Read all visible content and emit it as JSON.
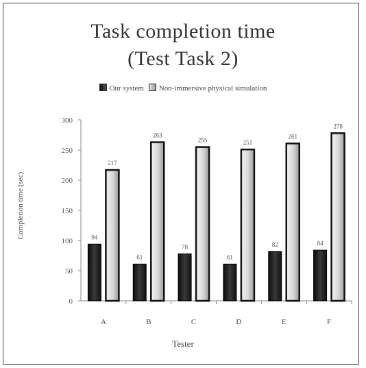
{
  "chart_data": {
    "type": "bar",
    "title_line1": "Task completion time",
    "title_line2": "(Test Task 2)",
    "xlabel": "Tester",
    "ylabel": "Completion time (sec)",
    "categories": [
      "A",
      "B",
      "C",
      "D",
      "E",
      "F"
    ],
    "series": [
      {
        "name": "Our system",
        "values": [
          94,
          61,
          78,
          61,
          82,
          84
        ],
        "labels": [
          "94",
          "61",
          "78",
          "61",
          "82",
          "84"
        ],
        "color": "#1a1a1a"
      },
      {
        "name": "Non-immersive physical simulation",
        "values": [
          217,
          263,
          255,
          251,
          261,
          278
        ],
        "labels": [
          "217",
          "263",
          "255",
          "251",
          "261",
          "278"
        ],
        "color": "#d8d8d8"
      }
    ],
    "ylim": [
      0,
      300
    ],
    "yticks": [
      0,
      50,
      100,
      150,
      200,
      250,
      300
    ],
    "grid": false,
    "legend": "top"
  }
}
